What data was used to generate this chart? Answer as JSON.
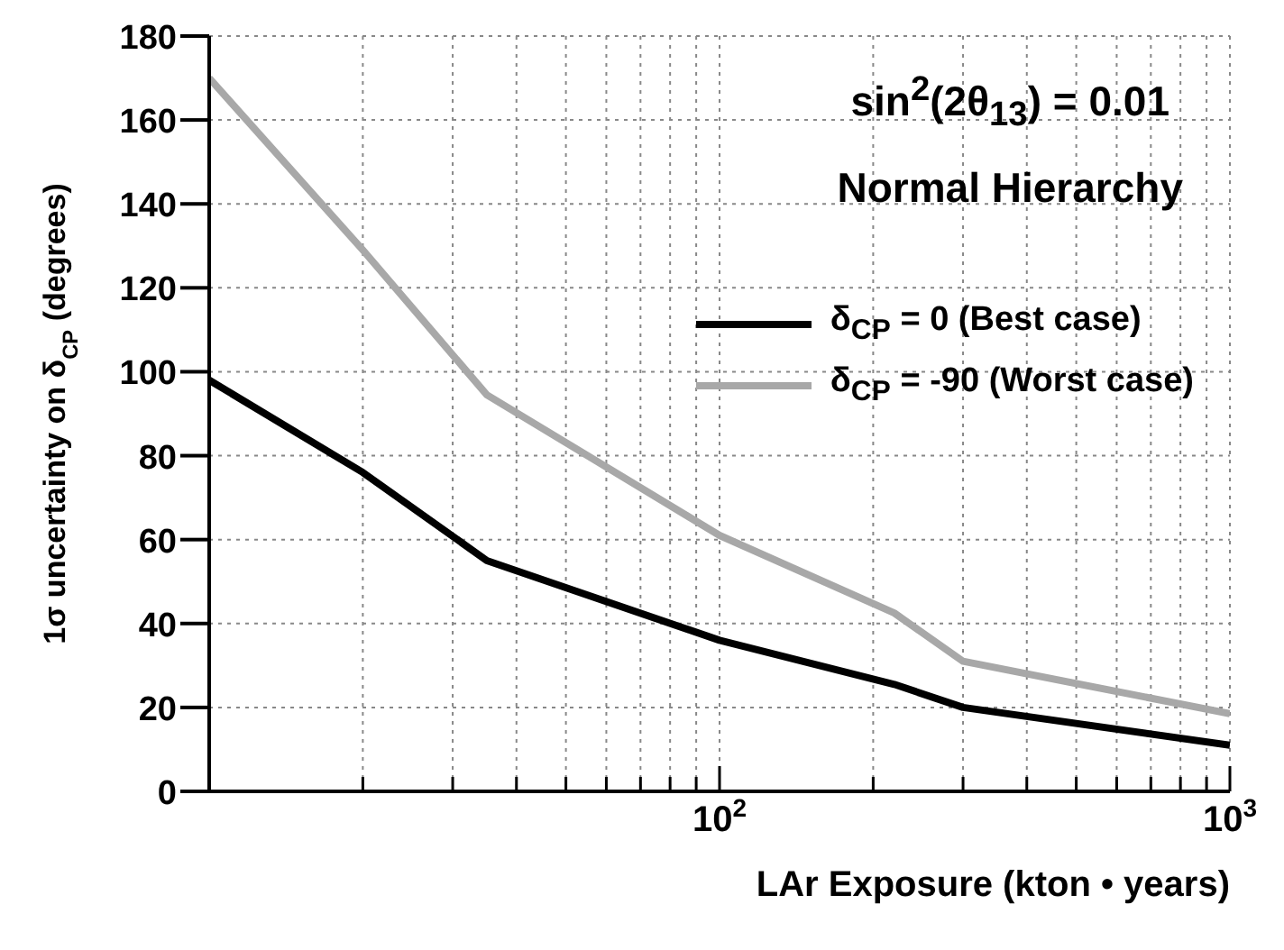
{
  "chart_data": {
    "type": "line",
    "annotations": [
      "sin$^{2}$(2θ$_{13}$) = 0.01",
      "Normal Hierarchy"
    ],
    "xlabel": "LAr Exposure (kton • years)",
    "ylabel": "1σ uncertainty on δ$_{CP}$ (degrees)",
    "x": [
      10,
      20,
      35,
      100,
      220,
      300,
      1000
    ],
    "series": [
      {
        "name": "δ$_{CP}$ = 0 (Best case)",
        "color": "#000000",
        "values": [
          98,
          76,
          55,
          36,
          25.5,
          20,
          11
        ]
      },
      {
        "name": "δ$_{CP}$ = -90 (Worst case)",
        "color": "#a8a8a8",
        "values": [
          170,
          129,
          94.5,
          61,
          42.5,
          31,
          18.5
        ]
      }
    ],
    "log": "x",
    "xlim": [
      10,
      1000
    ],
    "xticks": [
      {
        "value": 20,
        "label": null
      },
      {
        "value": 30,
        "label": null
      },
      {
        "value": 40,
        "label": null
      },
      {
        "value": 50,
        "label": null
      },
      {
        "value": 60,
        "label": null
      },
      {
        "value": 70,
        "label": null
      },
      {
        "value": 80,
        "label": null
      },
      {
        "value": 90,
        "label": null
      },
      {
        "value": 100,
        "label": "10$^{2}$"
      },
      {
        "value": 200,
        "label": null
      },
      {
        "value": 300,
        "label": null
      },
      {
        "value": 400,
        "label": null
      },
      {
        "value": 500,
        "label": null
      },
      {
        "value": 600,
        "label": null
      },
      {
        "value": 700,
        "label": null
      },
      {
        "value": 800,
        "label": null
      },
      {
        "value": 900,
        "label": null
      },
      {
        "value": 1000,
        "label": "10$^{3}$"
      }
    ],
    "ylim": [
      0,
      180
    ],
    "yticks": [
      0,
      20,
      40,
      60,
      80,
      100,
      120,
      140,
      160,
      180
    ],
    "grid": true,
    "legend": "right",
    "marker": "none",
    "line_style": "solid"
  }
}
